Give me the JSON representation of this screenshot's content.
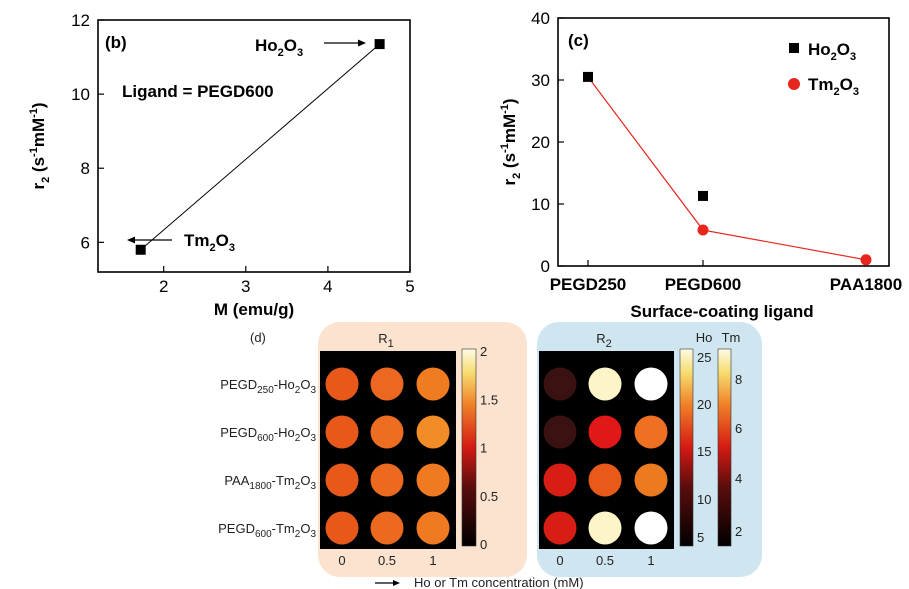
{
  "chart_data": [
    {
      "panel": "(b)",
      "type": "scatter",
      "xlabel": "M (emu/g)",
      "ylabel": "r2 (s-1mM-1)",
      "xlim": [
        1.2,
        5.0
      ],
      "ylim": [
        5.2,
        12.0
      ],
      "xticks": [
        2,
        3,
        4,
        5
      ],
      "yticks": [
        6,
        8,
        10,
        12
      ],
      "annotation": "Ligand = PEGD600",
      "points": [
        {
          "label": "Tm2O3",
          "x": 1.72,
          "y": 5.8
        },
        {
          "label": "Ho2O3",
          "x": 4.63,
          "y": 11.35
        }
      ]
    },
    {
      "panel": "(c)",
      "type": "line",
      "xlabel": "Surface-coating ligand",
      "ylabel": "r2 (s-1mM-1)",
      "categories": [
        "PEGD250",
        "PEGD600",
        "PAA1800"
      ],
      "ylim": [
        0,
        40
      ],
      "yticks": [
        0,
        10,
        20,
        30,
        40
      ],
      "legend_position": "top-right",
      "series": [
        {
          "name": "Ho2O3",
          "color": "#000000",
          "marker": "square",
          "values": [
            30.5,
            11.3,
            null
          ]
        },
        {
          "name": "Tm2O3",
          "color": "#e8251d",
          "marker": "circle",
          "values": [
            30.5,
            5.8,
            1.0
          ]
        }
      ]
    },
    {
      "panel": "(d)",
      "type": "heatmap",
      "rows": [
        "PEGD250-Ho2O3",
        "PEGD600-Ho2O3",
        "PAA1800-Tm2O3",
        "PEGD600-Tm2O3"
      ],
      "columns": [
        "0",
        "0.5",
        "1"
      ],
      "xlabel": "Ho or Tm concentration (mM)",
      "maps": [
        {
          "title": "R1",
          "colorbar_ticks": [
            "2",
            "1.5",
            "1",
            "0.5",
            "0"
          ],
          "cell_colors": [
            [
              "#e85818",
              "#ec6820",
              "#f07c22"
            ],
            [
              "#e85818",
              "#ed6e20",
              "#f28c26"
            ],
            [
              "#e85818",
              "#ec6a20",
              "#ef7a22"
            ],
            [
              "#e85818",
              "#ec6a20",
              "#ef7a22"
            ]
          ]
        },
        {
          "title": "R2",
          "colorbar_labels": [
            "Ho",
            "Tm"
          ],
          "ho_ticks": [
            "25",
            "20",
            "15",
            "10",
            "5"
          ],
          "tm_ticks": [
            "8",
            "6",
            "4",
            "2"
          ],
          "cell_colors": [
            [
              "#3a1212",
              "#fdf5c8",
              "#ffffff"
            ],
            [
              "#3a1212",
              "#e21818",
              "#ee7020"
            ],
            [
              "#d81e14",
              "#e95a18",
              "#ee7a20"
            ],
            [
              "#d81e14",
              "#fdf5c8",
              "#ffffff"
            ]
          ]
        }
      ]
    }
  ]
}
